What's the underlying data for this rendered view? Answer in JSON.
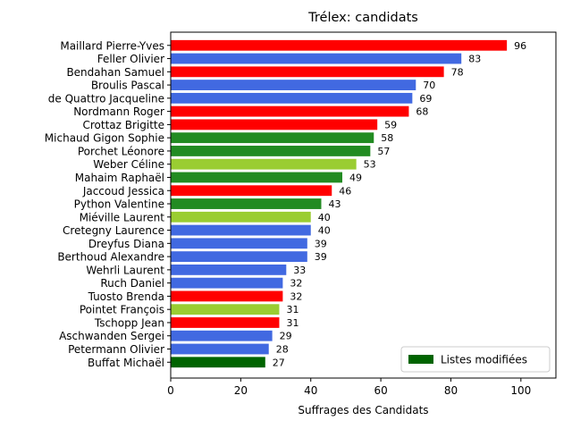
{
  "chart_data": {
    "type": "bar",
    "orientation": "horizontal",
    "title": "Trélex: candidats",
    "xlabel": "Suffrages des Candidats",
    "ylabel": "",
    "xlim": [
      0,
      110
    ],
    "xticks": [
      0,
      20,
      40,
      60,
      80,
      100
    ],
    "grid": false,
    "legend_position": "lower-right",
    "legend": [
      {
        "label": "Listes modifiées",
        "color": "#006400"
      }
    ],
    "categories": [
      "Maillard Pierre-Yves",
      "Feller Olivier",
      "Bendahan Samuel",
      "Broulis Pascal",
      "de Quattro Jacqueline",
      "Nordmann Roger",
      "Crottaz Brigitte",
      "Michaud Gigon Sophie",
      "Porchet Léonore",
      "Weber Céline",
      "Mahaim Raphaël",
      "Jaccoud Jessica",
      "Python Valentine",
      "Miéville Laurent",
      "Cretegny Laurence",
      "Dreyfus Diana",
      "Berthoud Alexandre",
      "Wehrli Laurent",
      "Ruch Daniel",
      "Tuosto Brenda",
      "Pointet François",
      "Tschopp Jean",
      "Aschwanden Sergei",
      "Petermann Olivier",
      "Buffat Michaël"
    ],
    "values": [
      96,
      83,
      78,
      70,
      69,
      68,
      59,
      58,
      57,
      53,
      49,
      46,
      43,
      40,
      40,
      39,
      39,
      33,
      32,
      32,
      31,
      31,
      29,
      28,
      27
    ],
    "colors": [
      "#ff0000",
      "#4169e1",
      "#ff0000",
      "#4169e1",
      "#4169e1",
      "#ff0000",
      "#ff0000",
      "#228b22",
      "#228b22",
      "#9acd32",
      "#228b22",
      "#ff0000",
      "#228b22",
      "#9acd32",
      "#4169e1",
      "#4169e1",
      "#4169e1",
      "#4169e1",
      "#4169e1",
      "#ff0000",
      "#9acd32",
      "#ff0000",
      "#4169e1",
      "#4169e1",
      "#006400"
    ]
  }
}
